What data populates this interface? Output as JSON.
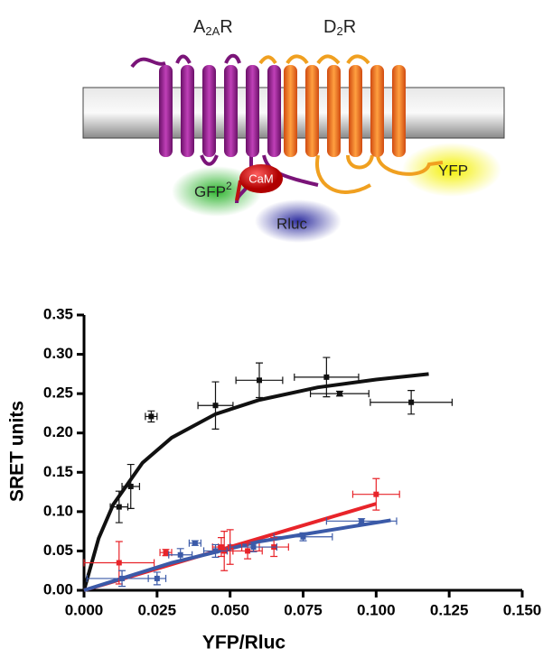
{
  "diagram": {
    "a2ar": {
      "main": "A",
      "sub": "2A",
      "end": "R"
    },
    "d2r": {
      "main": "D",
      "sub": "2",
      "end": "R"
    },
    "gfp": {
      "main": "GFP",
      "sup": "2"
    },
    "cam": "CaM",
    "rluc": "Rluc",
    "yfp": "YFP"
  },
  "chart_data": {
    "type": "scatter",
    "xlabel": "YFP/Rluc",
    "ylabel": "SRET units",
    "xlim": [
      0,
      0.15
    ],
    "ylim": [
      0,
      0.35
    ],
    "xticks": [
      {
        "value": 0,
        "label": "0.000"
      },
      {
        "value": 0.025,
        "label": "0.025"
      },
      {
        "value": 0.05,
        "label": "0.050"
      },
      {
        "value": 0.075,
        "label": "0.075"
      },
      {
        "value": 0.1,
        "label": "0.100"
      },
      {
        "value": 0.125,
        "label": "0.125"
      },
      {
        "value": 0.15,
        "label": "0.150"
      }
    ],
    "yticks": [
      {
        "value": 0,
        "label": "0.00"
      },
      {
        "value": 0.05,
        "label": "0.05"
      },
      {
        "value": 0.1,
        "label": "0.10"
      },
      {
        "value": 0.15,
        "label": "0.15"
      },
      {
        "value": 0.2,
        "label": "0.20"
      },
      {
        "value": 0.25,
        "label": "0.25"
      },
      {
        "value": 0.3,
        "label": "0.30"
      },
      {
        "value": 0.35,
        "label": "0.35"
      }
    ],
    "series": [
      {
        "color": "#111111",
        "x": [
          0.012,
          0.016,
          0.023,
          0.045,
          0.06,
          0.083,
          0.0875,
          0.112
        ],
        "values": [
          0.106,
          0.132,
          0.221,
          0.235,
          0.267,
          0.271,
          0.25,
          0.239
        ],
        "x_err": [
          0.003,
          0.003,
          0.002,
          0.006,
          0.008,
          0.011,
          0.01,
          0.014
        ],
        "y_err": [
          0.02,
          0.028,
          0.007,
          0.03,
          0.022,
          0.025,
          0.003,
          0.015
        ]
      },
      {
        "color": "#e8242a",
        "x": [
          0.012,
          0.028,
          0.047,
          0.048,
          0.05,
          0.056,
          0.065,
          0.1
        ],
        "values": [
          0.035,
          0.048,
          0.055,
          0.05,
          0.055,
          0.05,
          0.055,
          0.122
        ],
        "x_err": [
          0.012,
          0.002,
          0.003,
          0.003,
          0.004,
          0.005,
          0.005,
          0.008
        ],
        "y_err": [
          0.027,
          0.004,
          0.012,
          0.025,
          0.022,
          0.01,
          0.012,
          0.02
        ]
      },
      {
        "color": "#3b5aa8",
        "x": [
          0.013,
          0.025,
          0.033,
          0.038,
          0.045,
          0.058,
          0.075,
          0.095
        ],
        "values": [
          0.015,
          0.015,
          0.045,
          0.06,
          0.05,
          0.055,
          0.068,
          0.088
        ],
        "x_err": [
          0.012,
          0.003,
          0.004,
          0.002,
          0.004,
          0.008,
          0.01,
          0.012
        ],
        "y_err": [
          0.01,
          0.008,
          0.008,
          0.003,
          0.008,
          0.006,
          0.005,
          0.003
        ]
      }
    ],
    "fits": [
      {
        "color": "#111111",
        "x": [
          0,
          0.005,
          0.01,
          0.02,
          0.03,
          0.045,
          0.06,
          0.08,
          0.1,
          0.118
        ],
        "values": [
          0,
          0.066,
          0.109,
          0.162,
          0.194,
          0.224,
          0.242,
          0.258,
          0.268,
          0.275
        ]
      },
      {
        "color": "#e8242a",
        "x": [
          0,
          0.1
        ],
        "values": [
          0,
          0.11
        ]
      },
      {
        "color": "#3b5aa8",
        "x": [
          0,
          0.03,
          0.06,
          0.105
        ],
        "values": [
          0,
          0.035,
          0.062,
          0.089
        ]
      }
    ]
  }
}
